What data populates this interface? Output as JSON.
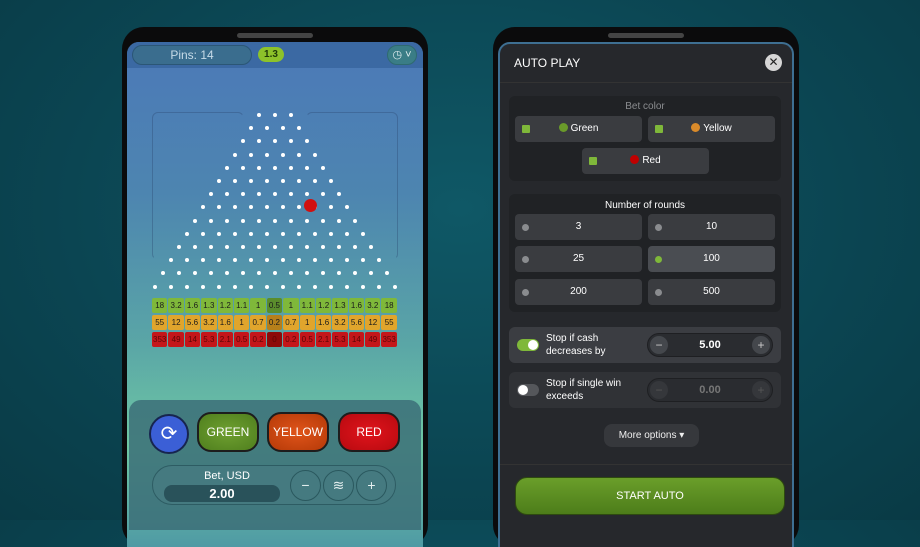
{
  "game": {
    "pins_label": "Pins: 14",
    "last_multiplier": "1.3",
    "history_icon": "history-clock-icon",
    "ball_color": "#d01010",
    "multipliers": {
      "green": [
        "18",
        "3.2",
        "1.6",
        "1.3",
        "1.2",
        "1.1",
        "1",
        "0.5",
        "1",
        "1.1",
        "1.2",
        "1.3",
        "1.6",
        "3.2",
        "18"
      ],
      "yellow": [
        "55",
        "12",
        "5.6",
        "3.2",
        "1.6",
        "1",
        "0.7",
        "0.2",
        "0.7",
        "1",
        "1.6",
        "3.2",
        "5.6",
        "12",
        "55"
      ],
      "red": [
        "353",
        "49",
        "14",
        "5.3",
        "2.1",
        "0.5",
        "0.2",
        "0",
        "0.2",
        "0.5",
        "2.1",
        "5.3",
        "14",
        "49",
        "353"
      ]
    },
    "buttons": {
      "green": "GREEN",
      "yellow": "YELLOW",
      "red": "RED",
      "auto_icon": "autoplay-icon"
    },
    "bet": {
      "label": "Bet, USD",
      "value": "2.00",
      "minus": "−",
      "plus": "+",
      "coins_icon": "coins-icon"
    }
  },
  "autoplay": {
    "title": "AUTO PLAY",
    "close": "✕",
    "bet_color": {
      "label": "Bet color",
      "options": [
        {
          "label": "Green",
          "color": "#6a9a2a"
        },
        {
          "label": "Yellow",
          "color": "#d98a2a"
        },
        {
          "label": "Red",
          "color": "#c00000"
        }
      ]
    },
    "rounds": {
      "label": "Number of rounds",
      "options": [
        "3",
        "10",
        "25",
        "100",
        "200",
        "500"
      ],
      "selected": "100"
    },
    "stop_cash": {
      "label": "Stop if cash decreases by",
      "enabled": true,
      "value": "5.00",
      "minus": "−",
      "plus": "+"
    },
    "stop_win": {
      "label": "Stop if single win exceeds",
      "enabled": false,
      "value": "0.00",
      "minus": "−",
      "plus": "+"
    },
    "more_options": "More options ▾",
    "start": "START AUTO"
  }
}
